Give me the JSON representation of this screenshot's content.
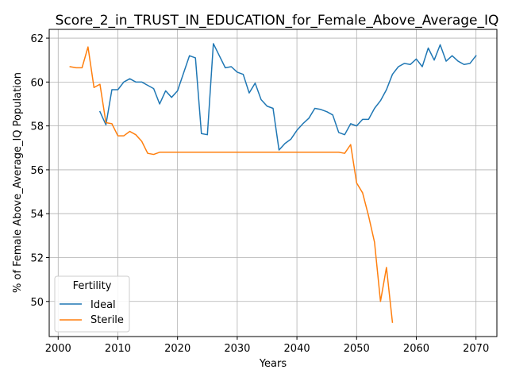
{
  "chart_data": {
    "type": "line",
    "title": "Score_2_in_TRUST_IN_EDUCATION_for_Female_Above_Average_IQ",
    "xlabel": "Years",
    "ylabel": "% of Female Above_Average_IQ Population",
    "xlim": [
      1998.5,
      2073.5
    ],
    "ylim": [
      48.4,
      62.4
    ],
    "xticks": [
      2000,
      2010,
      2020,
      2030,
      2040,
      2050,
      2060,
      2070
    ],
    "yticks": [
      50,
      52,
      54,
      56,
      58,
      60,
      62
    ],
    "grid": true,
    "legend": {
      "title": "Fertility",
      "location": "lower-left"
    },
    "series": [
      {
        "name": "Ideal",
        "color": "#1f77b4",
        "x": [
          2007,
          2008,
          2009,
          2010,
          2011,
          2012,
          2013,
          2014,
          2015,
          2016,
          2017,
          2018,
          2019,
          2020,
          2021,
          2022,
          2023,
          2024,
          2025,
          2026,
          2027,
          2028,
          2029,
          2030,
          2031,
          2032,
          2033,
          2034,
          2035,
          2036,
          2037,
          2038,
          2039,
          2040,
          2041,
          2042,
          2043,
          2044,
          2045,
          2046,
          2047,
          2048,
          2049,
          2050,
          2051,
          2052,
          2053,
          2054,
          2055,
          2056,
          2057,
          2058,
          2059,
          2060,
          2061,
          2062,
          2063,
          2064,
          2065,
          2066,
          2067,
          2068,
          2069,
          2070
        ],
        "values": [
          58.65,
          58.05,
          59.65,
          59.65,
          60.0,
          60.15,
          60.0,
          60.0,
          59.85,
          59.7,
          59.0,
          59.6,
          59.3,
          59.6,
          60.4,
          61.2,
          61.1,
          57.65,
          57.6,
          61.75,
          61.2,
          60.65,
          60.7,
          60.45,
          60.35,
          59.5,
          59.95,
          59.2,
          58.9,
          58.8,
          56.9,
          57.2,
          57.4,
          57.8,
          58.1,
          58.35,
          58.8,
          58.75,
          58.65,
          58.5,
          57.7,
          57.6,
          58.1,
          58.0,
          58.3,
          58.3,
          58.8,
          59.15,
          59.65,
          60.35,
          60.7,
          60.85,
          60.8,
          61.05,
          60.7,
          61.55,
          61.0,
          61.7,
          60.95,
          61.2,
          60.95,
          60.8,
          60.85,
          61.2
        ]
      },
      {
        "name": "Sterile",
        "color": "#ff7f0e",
        "x": [
          2002,
          2003,
          2004,
          2005,
          2006,
          2007,
          2008,
          2009,
          2010,
          2011,
          2012,
          2013,
          2014,
          2015,
          2016,
          2017,
          2018,
          2019,
          2020,
          2021,
          2022,
          2023,
          2024,
          2025,
          2026,
          2027,
          2028,
          2029,
          2030,
          2031,
          2032,
          2033,
          2034,
          2035,
          2036,
          2037,
          2038,
          2039,
          2040,
          2041,
          2042,
          2043,
          2044,
          2045,
          2046,
          2047,
          2048,
          2049,
          2050,
          2051,
          2052,
          2053,
          2054,
          2055,
          2056
        ],
        "values": [
          60.7,
          60.65,
          60.65,
          61.6,
          59.75,
          59.9,
          58.15,
          58.1,
          57.55,
          57.55,
          57.75,
          57.6,
          57.3,
          56.75,
          56.7,
          56.8,
          56.8,
          56.8,
          56.8,
          56.8,
          56.8,
          56.8,
          56.8,
          56.8,
          56.8,
          56.8,
          56.8,
          56.8,
          56.8,
          56.8,
          56.8,
          56.8,
          56.8,
          56.8,
          56.8,
          56.8,
          56.8,
          56.8,
          56.8,
          56.8,
          56.8,
          56.8,
          56.8,
          56.8,
          56.8,
          56.8,
          56.75,
          57.15,
          55.4,
          54.95,
          53.9,
          52.7,
          50.0,
          51.55,
          49.05
        ]
      }
    ]
  }
}
